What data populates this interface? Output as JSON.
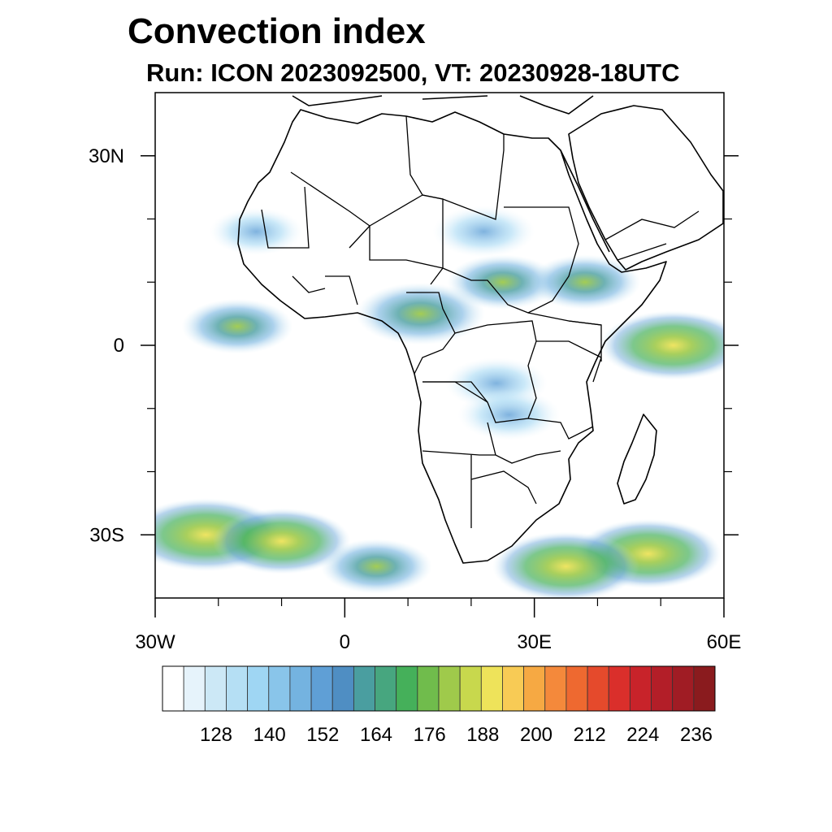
{
  "title": "Convection index",
  "subtitle": "Run: ICON 2023092500,  VT: 20230928-18UTC",
  "axes": {
    "lon_range": [
      -30,
      60
    ],
    "lat_range": [
      -40,
      40
    ],
    "x_ticks": [
      {
        "value": -30,
        "label": "30W"
      },
      {
        "value": 0,
        "label": "0"
      },
      {
        "value": 30,
        "label": "30E"
      },
      {
        "value": 60,
        "label": "60E"
      }
    ],
    "y_ticks": [
      {
        "value": 30,
        "label": "30N"
      },
      {
        "value": 0,
        "label": "0"
      },
      {
        "value": -30,
        "label": "30S"
      }
    ],
    "minor_lon": [
      -20,
      -10,
      10,
      20,
      40,
      50
    ],
    "minor_lat": [
      20,
      10,
      -10,
      -20
    ]
  },
  "colorbar": {
    "colors": [
      "#ffffff",
      "#e6f3fb",
      "#cce8f6",
      "#b5dff4",
      "#9fd6f3",
      "#89c5ea",
      "#74b3e0",
      "#5f9fd6",
      "#4f8ec3",
      "#4a9ea0",
      "#47a67f",
      "#45b05a",
      "#70bc4c",
      "#9fca4b",
      "#c8d84d",
      "#eee35a",
      "#f8cb55",
      "#f6a943",
      "#f4893b",
      "#ee6930",
      "#e54a2c",
      "#da2f2b",
      "#c8232a",
      "#b31e28",
      "#a01c24",
      "#8a1b1e"
    ],
    "labels": [
      "128",
      "140",
      "152",
      "164",
      "176",
      "188",
      "200",
      "212",
      "224",
      "236"
    ]
  },
  "field": {
    "blobs": [
      {
        "lon": 48,
        "lat": -33,
        "intensity": 0.55
      },
      {
        "lon": 12,
        "lat": 5,
        "intensity": 0.45
      },
      {
        "lon": 25,
        "lat": 10,
        "intensity": 0.35
      },
      {
        "lon": 38,
        "lat": 10,
        "intensity": 0.35
      },
      {
        "lon": 24,
        "lat": -6,
        "intensity": 0.3
      },
      {
        "lon": 26,
        "lat": -11,
        "intensity": 0.3
      },
      {
        "lon": 52,
        "lat": 0,
        "intensity": 0.55
      },
      {
        "lon": -17,
        "lat": 3,
        "intensity": 0.35
      },
      {
        "lon": 22,
        "lat": 18,
        "intensity": 0.3
      },
      {
        "lon": -22,
        "lat": -30,
        "intensity": 0.6
      },
      {
        "lon": -10,
        "lat": -31,
        "intensity": 0.5
      },
      {
        "lon": 5,
        "lat": -35,
        "intensity": 0.35
      },
      {
        "lon": 35,
        "lat": -35,
        "intensity": 0.55
      },
      {
        "lon": -14,
        "lat": 18,
        "intensity": 0.25
      }
    ]
  }
}
